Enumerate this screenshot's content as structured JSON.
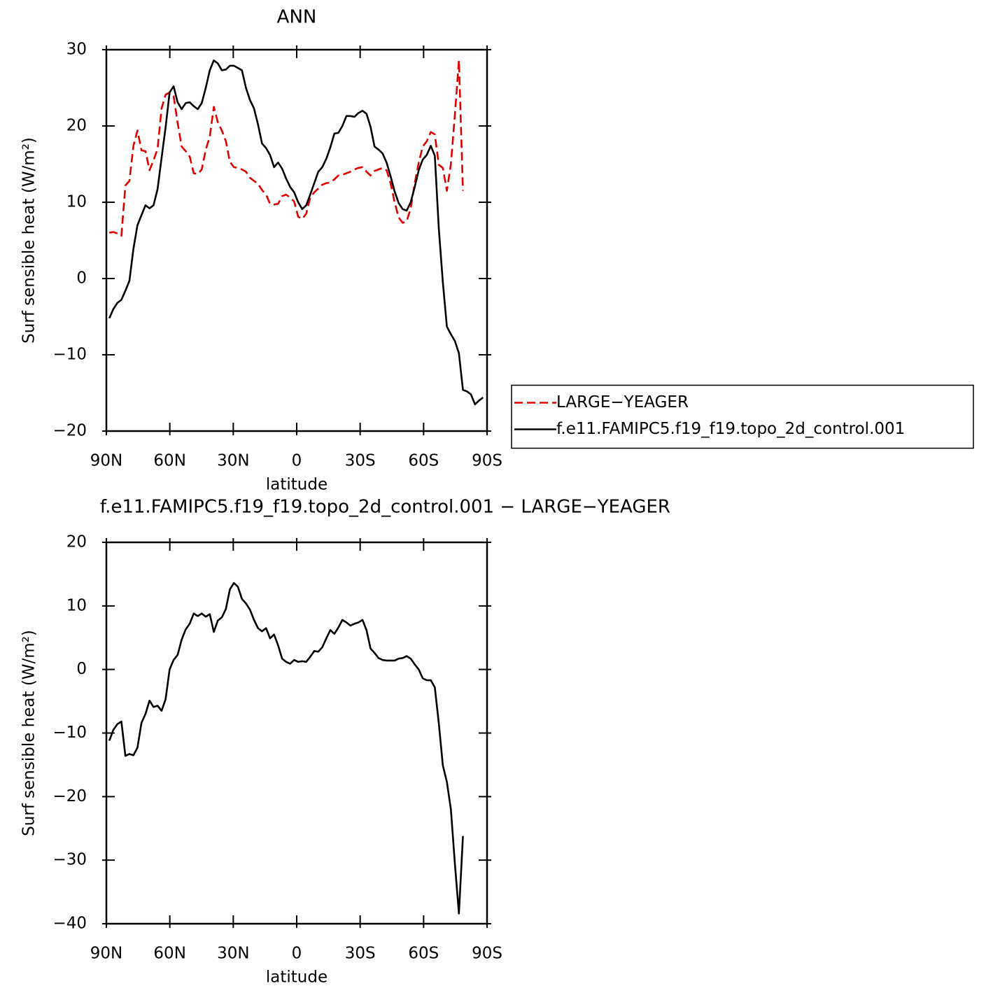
{
  "chart_data": [
    {
      "type": "line",
      "title": "ANN",
      "xlabel": "latitude",
      "ylabel": "Surf sensible heat (W/m²)",
      "xlim": [
        90,
        -90
      ],
      "xticks": [
        {
          "value": 90,
          "label": "90N"
        },
        {
          "value": 60,
          "label": "60N"
        },
        {
          "value": 30,
          "label": "30N"
        },
        0,
        {
          "value": -30,
          "label": "30S"
        },
        {
          "value": -60,
          "label": "60S"
        },
        {
          "value": -90,
          "label": "90S"
        }
      ],
      "ylim": [
        -20,
        30
      ],
      "yticks": [
        {
          "value": -20,
          "label": "−20"
        },
        {
          "value": -10,
          "label": "−10"
        },
        0,
        10,
        20,
        30
      ],
      "legend": "right",
      "x": [
        88.6,
        86.7,
        84.8,
        82.9,
        81.0,
        79.1,
        77.2,
        75.3,
        73.4,
        71.5,
        69.6,
        67.7,
        65.8,
        63.9,
        62.0,
        60.1,
        58.2,
        56.3,
        54.4,
        52.5,
        50.6,
        48.7,
        46.8,
        44.9,
        43.0,
        41.1,
        39.2,
        37.3,
        35.4,
        33.5,
        31.6,
        29.7,
        27.8,
        25.9,
        24.0,
        22.1,
        20.2,
        18.3,
        16.4,
        14.5,
        12.6,
        10.7,
        8.8,
        6.9,
        5.0,
        3.1,
        1.2,
        -0.7,
        -2.6,
        -4.5,
        -6.4,
        -8.3,
        -10.2,
        -12.1,
        -14.0,
        -15.9,
        -17.8,
        -19.7,
        -21.6,
        -23.5,
        -25.4,
        -27.3,
        -29.2,
        -31.1,
        -33.0,
        -34.9,
        -36.8,
        -38.7,
        -40.6,
        -42.5,
        -44.4,
        -46.3,
        -48.2,
        -50.1,
        -52.0,
        -53.9,
        -55.8,
        -57.7,
        -59.6,
        -61.5,
        -63.4,
        -65.3,
        -67.2,
        -69.1,
        -71.0,
        -72.9,
        -74.8,
        -76.7,
        -78.6,
        -80.5,
        -82.4,
        -84.3,
        -86.2,
        -88.1
      ],
      "series": [
        {
          "name": "LARGE−YEAGER",
          "color": "#e00000",
          "linestyle": "dashed",
          "values": [
            6.0,
            6.1,
            5.9,
            5.6,
            12.2,
            12.8,
            17.4,
            19.4,
            16.8,
            16.7,
            14.2,
            15.5,
            17.0,
            22.3,
            24.1,
            24.4,
            23.9,
            20.4,
            17.3,
            16.7,
            16.0,
            13.8,
            13.7,
            14.3,
            16.9,
            18.6,
            22.5,
            20.5,
            19.4,
            18.0,
            15.3,
            14.6,
            14.5,
            14.3,
            14.0,
            13.2,
            12.8,
            12.4,
            11.6,
            11.0,
            9.8,
            9.7,
            9.8,
            10.8,
            11.0,
            10.6,
            10.1,
            8.1,
            7.8,
            8.5,
            10.6,
            11.3,
            11.8,
            12.3,
            12.5,
            12.6,
            13.0,
            13.5,
            13.6,
            13.8,
            14.0,
            14.3,
            14.5,
            14.6,
            14.0,
            13.5,
            14.1,
            14.3,
            14.5,
            14.2,
            12.5,
            10.0,
            8.0,
            7.3,
            7.5,
            9.2,
            12.5,
            15.2,
            17.3,
            18.0,
            19.2,
            18.9,
            14.9,
            14.5,
            11.5,
            15.0,
            21.5,
            28.6,
            11.5,
            null,
            null,
            null,
            null,
            null
          ]
        },
        {
          "name": "f.e11.FAMIPC5.f19_f19.topo_2d_control.001",
          "color": "#000000",
          "linestyle": "solid",
          "values": [
            -5.2,
            -4.0,
            -3.2,
            -2.8,
            -1.6,
            -0.3,
            3.9,
            7.0,
            8.3,
            9.6,
            9.2,
            9.6,
            11.7,
            15.8,
            19.8,
            24.4,
            25.2,
            23.1,
            22.2,
            23.0,
            23.1,
            22.6,
            22.2,
            23.0,
            25.0,
            27.3,
            28.6,
            28.2,
            27.3,
            27.4,
            27.9,
            27.9,
            27.6,
            27.3,
            25.0,
            23.4,
            22.3,
            20.2,
            17.7,
            17.1,
            16.2,
            14.6,
            15.2,
            14.4,
            13.1,
            12.0,
            11.3,
            10.0,
            9.1,
            9.6,
            11.0,
            12.5,
            14.0,
            14.6,
            15.7,
            17.2,
            19.0,
            19.1,
            20.0,
            21.3,
            21.3,
            21.2,
            21.7,
            22.0,
            21.6,
            19.9,
            17.3,
            16.9,
            16.4,
            15.2,
            13.4,
            11.4,
            9.9,
            9.1,
            8.9,
            10.0,
            12.0,
            14.2,
            15.6,
            16.2,
            17.4,
            16.1,
            6.5,
            -0.5,
            -6.3,
            -7.3,
            -8.2,
            -9.8,
            -14.6,
            -14.8,
            -15.2,
            -16.5,
            -16.0,
            -15.6
          ]
        }
      ]
    },
    {
      "type": "line",
      "title": "f.e11.FAMIPC5.f19_f19.topo_2d_control.001 − LARGE−YEAGER",
      "xlabel": "latitude",
      "ylabel": "Surf sensible heat (W/m²)",
      "xlim": [
        90,
        -90
      ],
      "xticks": [
        {
          "value": 90,
          "label": "90N"
        },
        {
          "value": 60,
          "label": "60N"
        },
        {
          "value": 30,
          "label": "30N"
        },
        0,
        {
          "value": -30,
          "label": "30S"
        },
        {
          "value": -60,
          "label": "60S"
        },
        {
          "value": -90,
          "label": "90S"
        }
      ],
      "ylim": [
        -40,
        20
      ],
      "yticks": [
        {
          "value": -40,
          "label": "−40"
        },
        {
          "value": -30,
          "label": "−30"
        },
        {
          "value": -20,
          "label": "−20"
        },
        {
          "value": -10,
          "label": "−10"
        },
        0,
        10,
        20
      ],
      "x": [
        88.6,
        86.7,
        84.8,
        82.9,
        81.0,
        79.1,
        77.2,
        75.3,
        73.4,
        71.5,
        69.6,
        67.7,
        65.8,
        63.9,
        62.0,
        60.1,
        58.2,
        56.3,
        54.4,
        52.5,
        50.6,
        48.7,
        46.8,
        44.9,
        43.0,
        41.1,
        39.2,
        37.3,
        35.4,
        33.5,
        31.6,
        29.7,
        27.8,
        25.9,
        24.0,
        22.1,
        20.2,
        18.3,
        16.4,
        14.5,
        12.6,
        10.7,
        8.8,
        6.9,
        5.0,
        3.1,
        1.2,
        -0.7,
        -2.6,
        -4.5,
        -6.4,
        -8.3,
        -10.2,
        -12.1,
        -14.0,
        -15.9,
        -17.8,
        -19.7,
        -21.6,
        -23.5,
        -25.4,
        -27.3,
        -29.2,
        -31.1,
        -33.0,
        -34.9,
        -36.8,
        -38.7,
        -40.6,
        -42.5,
        -44.4,
        -46.3,
        -48.2,
        -50.1,
        -52.0,
        -53.9,
        -55.8,
        -57.7,
        -59.6,
        -61.5,
        -63.4,
        -65.3,
        -67.2,
        -69.1,
        -71.0,
        -72.9,
        -74.8,
        -76.7,
        -78.6,
        -80.5,
        -82.4,
        -84.3,
        -86.2,
        -88.1
      ],
      "series": [
        {
          "color": "#000000",
          "linestyle": "solid",
          "values": [
            -11.2,
            -9.5,
            -8.6,
            -8.2,
            -13.6,
            -13.3,
            -13.5,
            -12.3,
            -8.4,
            -7.0,
            -4.9,
            -5.9,
            -5.7,
            -6.5,
            -4.7,
            0.0,
            1.5,
            2.3,
            4.7,
            6.3,
            7.2,
            8.8,
            8.4,
            8.8,
            8.3,
            8.7,
            5.9,
            7.7,
            8.2,
            9.5,
            12.6,
            13.6,
            13.0,
            11.1,
            10.4,
            9.4,
            7.8,
            6.5,
            6.0,
            6.5,
            4.9,
            5.5,
            3.8,
            1.7,
            1.2,
            0.9,
            1.5,
            1.2,
            1.3,
            1.2,
            2.0,
            2.9,
            2.8,
            3.5,
            4.9,
            6.2,
            5.6,
            6.6,
            7.8,
            7.4,
            6.9,
            7.2,
            7.4,
            7.8,
            6.2,
            3.3,
            2.6,
            1.8,
            1.5,
            1.4,
            1.4,
            1.4,
            1.7,
            1.8,
            2.1,
            1.7,
            0.8,
            0.0,
            -1.4,
            -1.7,
            -1.7,
            -2.8,
            -8.5,
            -15.1,
            -17.7,
            -22.0,
            -30.6,
            -38.4,
            -26.2,
            null,
            null,
            null,
            null,
            null
          ]
        }
      ]
    }
  ]
}
